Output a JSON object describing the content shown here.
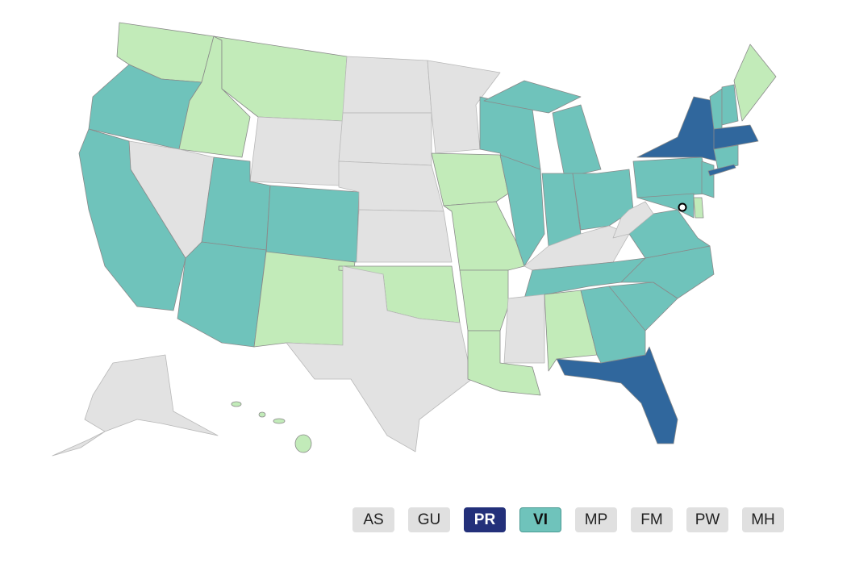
{
  "territories": [
    {
      "label": "AS"
    },
    {
      "label": "GU"
    },
    {
      "label": "PR"
    },
    {
      "label": "VI"
    },
    {
      "label": "MP"
    },
    {
      "label": "FM"
    },
    {
      "label": "PW"
    },
    {
      "label": "MH"
    }
  ]
}
